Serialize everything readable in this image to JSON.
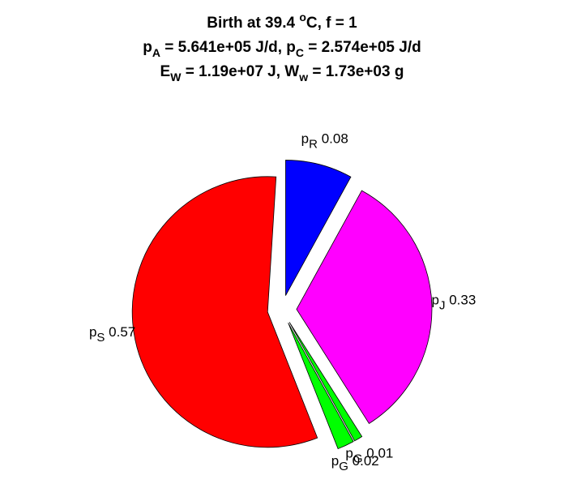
{
  "chart_data": {
    "type": "pie",
    "title_lines": [
      [
        {
          "text": "Birth at 39.4 "
        },
        {
          "sup": "o"
        },
        {
          "text": "C, f = 1"
        }
      ],
      [
        {
          "text": "p"
        },
        {
          "sub": "A"
        },
        {
          "text": " = 5.641e+05 J/d, p"
        },
        {
          "sub": "C"
        },
        {
          "text": " = 2.574e+05 J/d"
        }
      ],
      [
        {
          "text": "E"
        },
        {
          "sub": "W"
        },
        {
          "text": " = 1.19e+07 J, W"
        },
        {
          "sub": "w"
        },
        {
          "text": " = 1.73e+03 g"
        }
      ]
    ],
    "slices": [
      {
        "name": "p",
        "sub": "R",
        "value": 0.08,
        "color": "#0000ff"
      },
      {
        "name": "p",
        "sub": "J",
        "value": 0.33,
        "color": "#ff00ff"
      },
      {
        "name": "p",
        "sub": "G",
        "value": 0.01,
        "color": "#00ff00"
      },
      {
        "name": "p",
        "sub": "G",
        "value": 0.02,
        "color": "#00ff00"
      },
      {
        "name": "p",
        "sub": "S",
        "value": 0.57,
        "color": "#ff0000"
      }
    ],
    "direction": "clockwise",
    "exploded": true
  }
}
